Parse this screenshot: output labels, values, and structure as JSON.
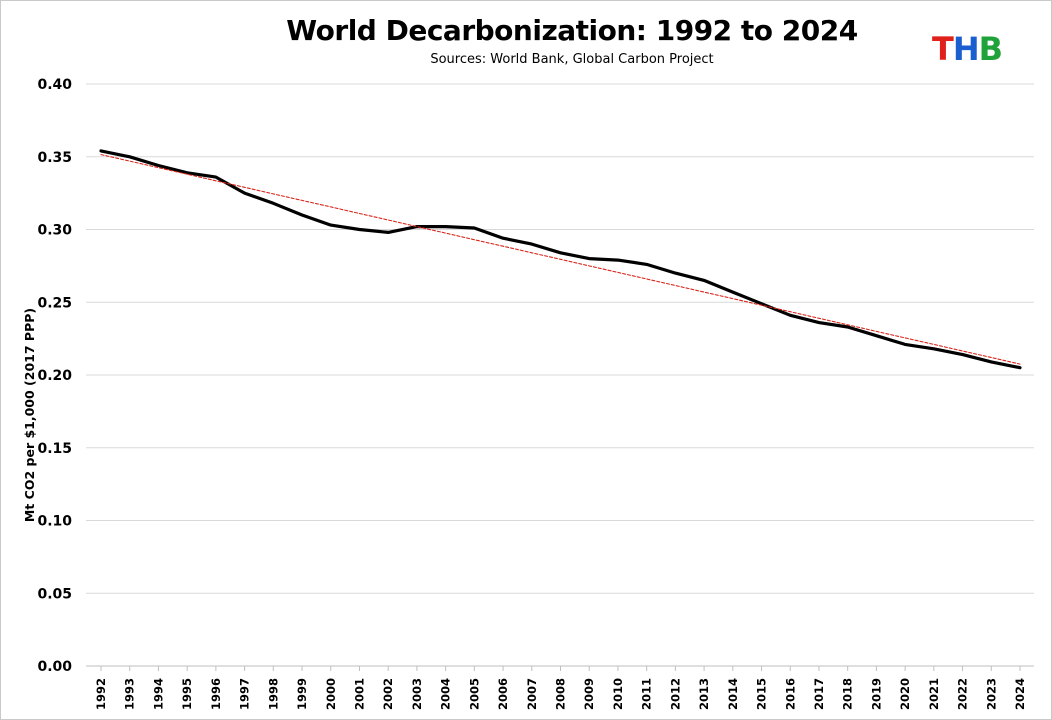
{
  "header": {
    "title": "World Decarbonization: 1992 to 2024",
    "subtitle": "Sources: World Bank, Global Carbon Project",
    "logo": {
      "t": "T",
      "h": "H",
      "b": "B"
    }
  },
  "colors": {
    "series_line": "#000000",
    "trend_line": "#d9261c",
    "grid": "#d9d9d9",
    "logo_t": "#e0201b",
    "logo_h": "#1a5fd0",
    "logo_b": "#1fa23a"
  },
  "chart_data": {
    "type": "line",
    "title": "World Decarbonization: 1992 to 2024",
    "subtitle": "Sources: World Bank, Global Carbon Project",
    "xlabel": "",
    "ylabel": "Mt CO2 per $1,000 (2017 PPP)",
    "ylim": [
      0,
      0.4
    ],
    "yticks": [
      "0.00",
      "0.05",
      "0.10",
      "0.15",
      "0.20",
      "0.25",
      "0.30",
      "0.35",
      "0.40"
    ],
    "grid": "horizontal",
    "legend": "none",
    "categories": [
      "1992",
      "1993",
      "1994",
      "1995",
      "1996",
      "1997",
      "1998",
      "1999",
      "2000",
      "2001",
      "2002",
      "2003",
      "2004",
      "2005",
      "2006",
      "2007",
      "2008",
      "2009",
      "2010",
      "2011",
      "2012",
      "2013",
      "2014",
      "2015",
      "2016",
      "2017",
      "2018",
      "2019",
      "2020",
      "2021",
      "2022",
      "2023",
      "2024"
    ],
    "series": [
      {
        "style": "solid",
        "values": [
          0.354,
          0.35,
          0.344,
          0.339,
          0.336,
          0.325,
          0.318,
          0.31,
          0.303,
          0.3,
          0.298,
          0.302,
          0.302,
          0.301,
          0.294,
          0.29,
          0.284,
          0.28,
          0.279,
          0.276,
          0.27,
          0.265,
          0.257,
          0.249,
          0.241,
          0.236,
          0.233,
          0.227,
          0.221,
          0.218,
          0.214,
          0.209,
          0.205
        ]
      },
      {
        "style": "dashed-trend",
        "values": [
          0.3515,
          0.347,
          0.3425,
          0.338,
          0.3335,
          0.329,
          0.3245,
          0.32,
          0.3155,
          0.311,
          0.3065,
          0.302,
          0.2975,
          0.293,
          0.2885,
          0.284,
          0.2795,
          0.275,
          0.2705,
          0.266,
          0.2615,
          0.257,
          0.2525,
          0.248,
          0.2435,
          0.239,
          0.2345,
          0.23,
          0.2255,
          0.221,
          0.2165,
          0.212,
          0.2075
        ]
      }
    ]
  }
}
